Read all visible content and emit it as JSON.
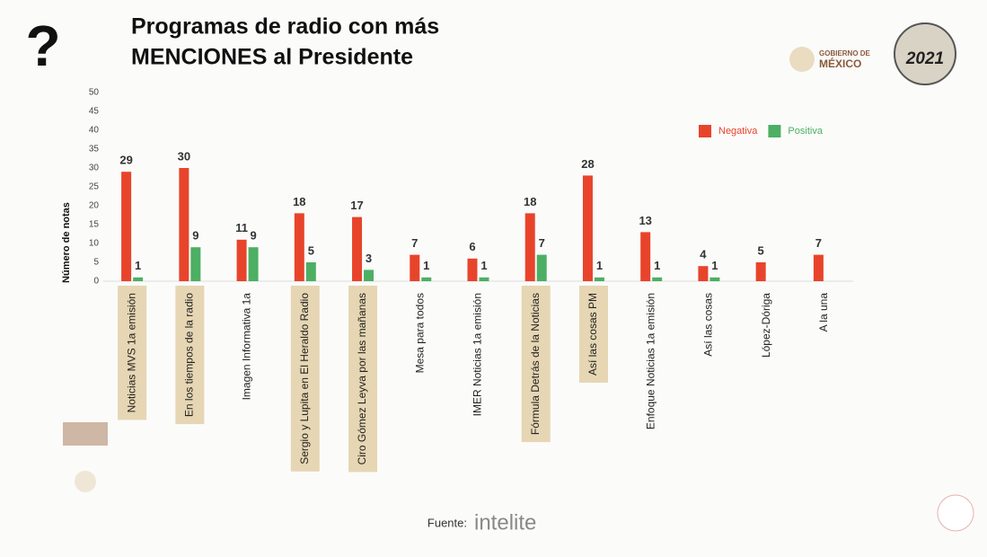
{
  "chart_data": {
    "type": "bar",
    "title_lines": [
      "Programas de radio con más",
      "MENCIONES al Presidente"
    ],
    "y_label": "Número de notas",
    "categories": [
      "Noticias MVS 1a emisión",
      "En los tiempos de la radio",
      "Imagen Informativa 1a",
      "Sergio y Lupita en El Heraldo Radio",
      "Ciro Gómez Leyva por las mañanas",
      "Mesa para todos",
      "IMER Noticias 1a emisión",
      "Fórmula Detrás de la Noticias",
      "Así las cosas PM",
      "Enfoque Noticias 1a emisión",
      "Así las cosas",
      "López-Dóriga",
      "A la una"
    ],
    "highlighted": [
      true,
      true,
      false,
      true,
      true,
      false,
      false,
      true,
      true,
      false,
      false,
      false,
      false
    ],
    "series": [
      {
        "name": "Negativa",
        "color": "#e8442b",
        "values": [
          29,
          30,
          11,
          18,
          17,
          7,
          6,
          18,
          28,
          13,
          4,
          5,
          7
        ]
      },
      {
        "name": "Positiva",
        "color": "#4caf63",
        "values": [
          1,
          9,
          9,
          5,
          3,
          1,
          1,
          7,
          1,
          1,
          1,
          null,
          null
        ]
      }
    ],
    "ylim": [
      0,
      50
    ],
    "yticks": [
      0,
      5,
      10,
      15,
      20,
      25,
      30,
      35,
      40,
      45,
      50
    ],
    "legend": "top-right",
    "source_label": "Fuente:",
    "source": "intelite",
    "logo_text": [
      "GOBIERNO DE",
      "MÉXICO",
      "2021"
    ]
  }
}
